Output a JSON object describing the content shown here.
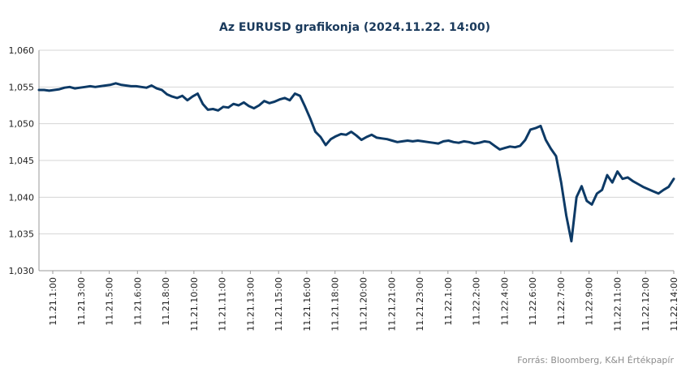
{
  "chart_data": {
    "type": "line",
    "title": "Az EURUSD grafikonja (2024.11.22.  14:00)",
    "source": "Forrás: Bloomberg,  K&H Értékpapír",
    "xlabel": "",
    "ylabel": "",
    "ylim": [
      1.03,
      1.06
    ],
    "yticks": [
      1.03,
      1.035,
      1.04,
      1.045,
      1.05,
      1.055,
      1.06
    ],
    "ytick_labels": [
      "1,030",
      "1,035",
      "1,040",
      "1,045",
      "1,050",
      "1,055",
      "1,060"
    ],
    "x_tick_labels": [
      "11.21.1:00",
      "11.21.3:00",
      "11.21.5:00",
      "11.21.6:00",
      "11.21.8:00",
      "11.21.10:00",
      "11.21.11:00",
      "11.21.13:00",
      "11.21.15:00",
      "11.21.16:00",
      "11.21.18:00",
      "11.21.20:00",
      "11.21.21:00",
      "11.21.23:00",
      "11.22.1:00",
      "11.22.2:00",
      "11.22.4:00",
      "11.22.6:00",
      "11.22.7:00",
      "11.22.9:00",
      "11.22.11:00",
      "11.22.12:00",
      "11.22.14:00"
    ],
    "grid": true,
    "line_color": "#0d3a66",
    "series": [
      {
        "values": [
          1.0546,
          1.0546,
          1.0545,
          1.0546,
          1.0547,
          1.0549,
          1.055,
          1.0548,
          1.0549,
          1.055,
          1.0551,
          1.055,
          1.0551,
          1.0552,
          1.0553,
          1.0555,
          1.0553,
          1.0552,
          1.0551,
          1.0551,
          1.055,
          1.0549,
          1.0552,
          1.0548,
          1.0546,
          1.054,
          1.0537,
          1.0535,
          1.0538,
          1.0532,
          1.0537,
          1.0541,
          1.0527,
          1.0519,
          1.052,
          1.0518,
          1.0523,
          1.0522,
          1.0527,
          1.0525,
          1.0529,
          1.0524,
          1.0521,
          1.0525,
          1.0531,
          1.0528,
          1.053,
          1.0533,
          1.0535,
          1.0532,
          1.0541,
          1.0538,
          1.0523,
          1.0507,
          1.0489,
          1.0482,
          1.0471,
          1.0479,
          1.0483,
          1.0486,
          1.0485,
          1.0489,
          1.0484,
          1.0478,
          1.0482,
          1.0485,
          1.0481,
          1.048,
          1.0479,
          1.0477,
          1.0475,
          1.0476,
          1.0477,
          1.0476,
          1.0477,
          1.0476,
          1.0475,
          1.0474,
          1.0473,
          1.0476,
          1.0477,
          1.0475,
          1.0474,
          1.0476,
          1.0475,
          1.0473,
          1.0474,
          1.0476,
          1.0475,
          1.047,
          1.0465,
          1.0467,
          1.0469,
          1.0468,
          1.047,
          1.0478,
          1.0492,
          1.0494,
          1.0497,
          1.0478,
          1.0466,
          1.0456,
          1.042,
          1.0375,
          1.034,
          1.04,
          1.0415,
          1.0395,
          1.039,
          1.0405,
          1.041,
          1.043,
          1.042,
          1.0435,
          1.0425,
          1.0427,
          1.0422,
          1.0418,
          1.0414,
          1.0411,
          1.0408,
          1.0405,
          1.041,
          1.0414,
          1.0425
        ]
      }
    ]
  }
}
